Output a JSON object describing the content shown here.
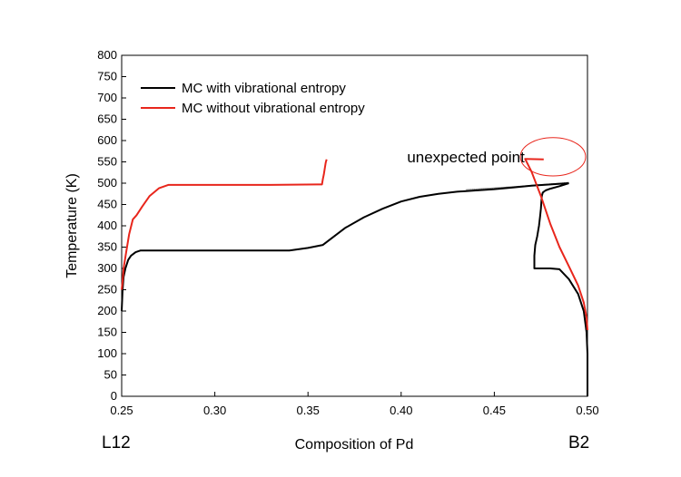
{
  "chart_data": {
    "type": "line",
    "title": "",
    "xlabel": "Composition of Pd",
    "ylabel": "Temperature (K)",
    "xlim": [
      0.25,
      0.5
    ],
    "ylim": [
      0,
      800
    ],
    "x_ticks": [
      0.25,
      0.3,
      0.35,
      0.4,
      0.45,
      0.5
    ],
    "x_tick_labels": [
      "0.25",
      "0.30",
      "0.35",
      "0.40",
      "0.45",
      "0.50"
    ],
    "y_ticks": [
      0,
      50,
      100,
      150,
      200,
      250,
      300,
      350,
      400,
      450,
      500,
      550,
      600,
      650,
      700,
      750,
      800
    ],
    "grid": false,
    "legend_position": "top-left",
    "series": [
      {
        "name": "MC with vibrational entropy",
        "color": "#000000",
        "x": [
          0.25,
          0.2505,
          0.251,
          0.252,
          0.2535,
          0.255,
          0.2575,
          0.26,
          0.28,
          0.3,
          0.32,
          0.34,
          0.35,
          0.358,
          0.36,
          0.37,
          0.38,
          0.39,
          0.4,
          0.41,
          0.42,
          0.43,
          0.44,
          0.45,
          0.46,
          0.47,
          0.48,
          0.49
        ],
        "y": [
          200,
          250,
          280,
          300,
          320,
          330,
          338,
          342,
          342,
          342,
          342,
          342,
          348,
          355,
          362,
          395,
          420,
          440,
          457,
          468,
          475,
          480,
          483,
          486,
          490,
          494,
          497,
          500
        ]
      },
      {
        "name": "",
        "color": "#000000",
        "x": [
          0.49,
          0.485,
          0.48,
          0.4775,
          0.476,
          0.4755,
          0.475,
          0.4745,
          0.474,
          0.473,
          0.472,
          0.4715,
          0.4715,
          0.475,
          0.48,
          0.485,
          0.49,
          0.495,
          0.498,
          0.4995,
          0.5,
          0.5
        ],
        "y": [
          500,
          493,
          487,
          483,
          478,
          470,
          440,
          420,
          400,
          375,
          355,
          330,
          300,
          300,
          300,
          298,
          275,
          240,
          200,
          150,
          100,
          0
        ]
      },
      {
        "name": "MC without vibrational entropy",
        "color": "#e8261c",
        "x": [
          0.25,
          0.2505,
          0.251,
          0.2525,
          0.254,
          0.256,
          0.258,
          0.261,
          0.265,
          0.27,
          0.275,
          0.3,
          0.33,
          0.355,
          0.3575,
          0.358,
          0.3585,
          0.359,
          0.3595,
          0.36
        ],
        "y": [
          250,
          270,
          300,
          340,
          380,
          415,
          425,
          445,
          470,
          488,
          496,
          496,
          496,
          497,
          497,
          510,
          520,
          535,
          548,
          556
        ]
      },
      {
        "name": "",
        "color": "#e8261c",
        "x": [
          0.4765,
          0.4665,
          0.4665,
          0.47,
          0.475,
          0.48,
          0.485,
          0.49,
          0.495,
          0.498,
          0.4995,
          0.5
        ],
        "y": [
          556,
          557,
          557,
          527,
          470,
          405,
          350,
          305,
          260,
          220,
          185,
          155
        ]
      }
    ],
    "annotations": [
      {
        "text": "unexpected point",
        "x": 0.41,
        "y": 562
      }
    ],
    "highlight_ellipse": {
      "cx": 0.4815,
      "cy": 562,
      "rx": 0.0175,
      "ry": 45,
      "color": "#e8261c"
    },
    "corner_labels": {
      "left": "L12",
      "right": "B2"
    }
  }
}
